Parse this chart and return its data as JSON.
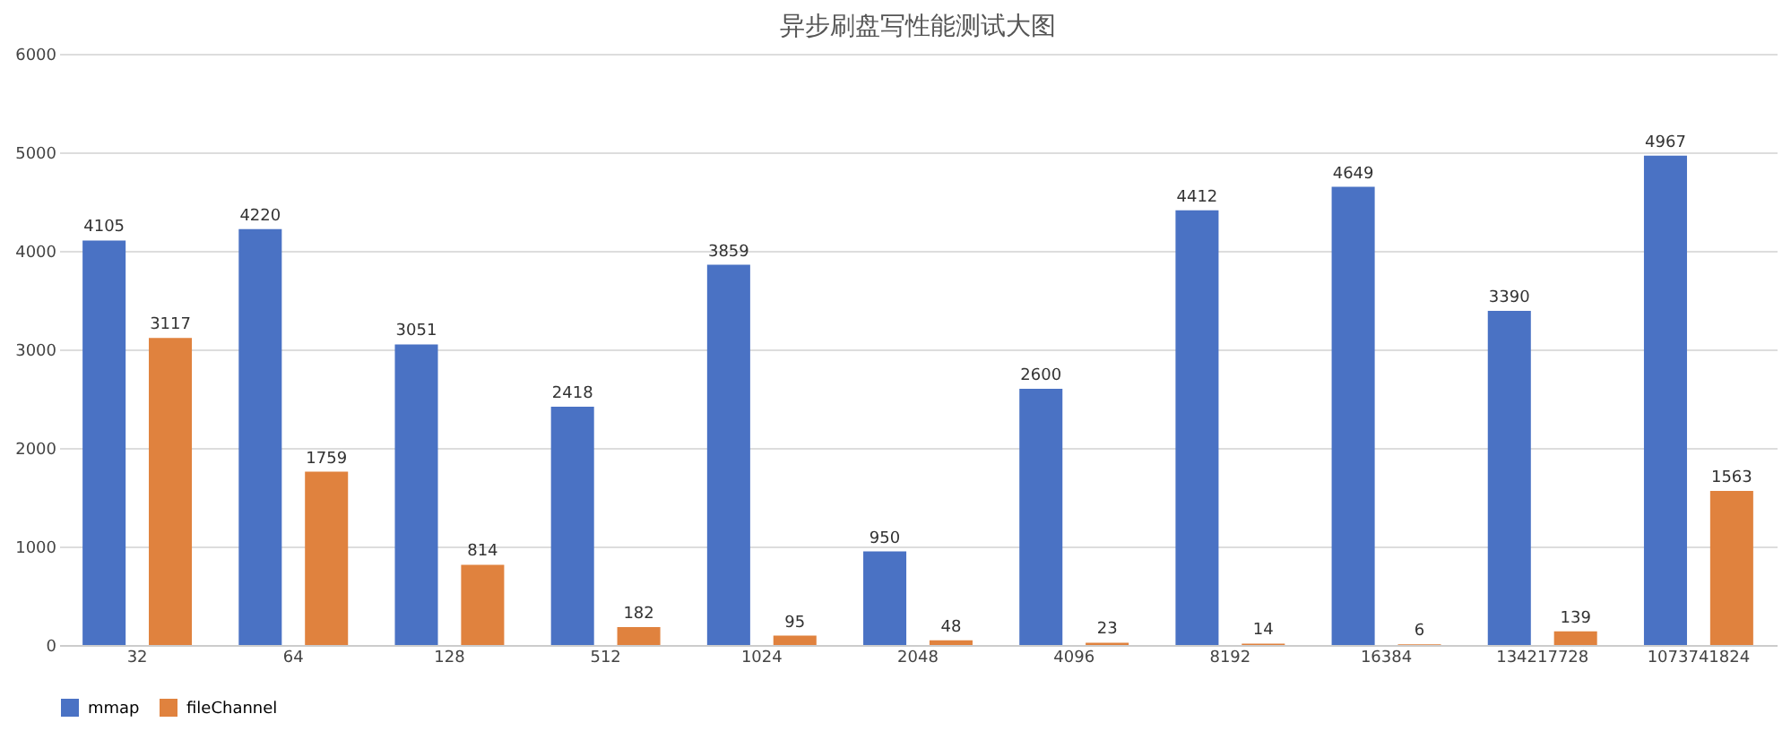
{
  "chart_data": {
    "type": "bar",
    "title": "异步刷盘写性能测试大图",
    "categories": [
      "32",
      "64",
      "128",
      "512",
      "1024",
      "2048",
      "4096",
      "8192",
      "16384",
      "134217728",
      "1073741824"
    ],
    "series": [
      {
        "name": "mmap",
        "color": "#4a72c4",
        "values": [
          4105,
          4220,
          3051,
          2418,
          3859,
          950,
          2600,
          4412,
          4649,
          3390,
          4967
        ]
      },
      {
        "name": "fileChannel",
        "color": "#e0823e",
        "values": [
          3117,
          1759,
          814,
          182,
          95,
          48,
          23,
          14,
          6,
          139,
          1563
        ]
      }
    ],
    "ylim": [
      0,
      6000
    ],
    "yticks": [
      0,
      1000,
      2000,
      3000,
      4000,
      5000,
      6000
    ],
    "grid": "y",
    "legend": "bottom",
    "data_labels": true
  }
}
